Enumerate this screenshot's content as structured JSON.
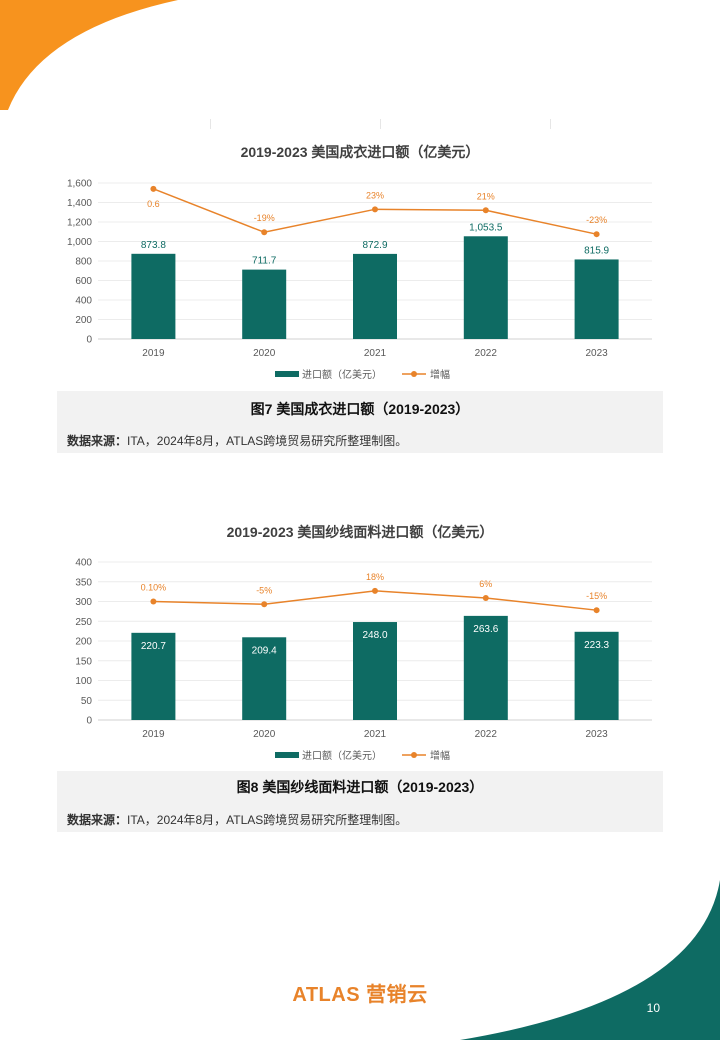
{
  "colors": {
    "bar": "#0E6B63",
    "line": "#E8832A",
    "accent_orange": "#F7931E",
    "accent_teal": "#0E6B63"
  },
  "figures": [
    {
      "caption": "图7 美国成衣进口额（2019-2023）",
      "source_label": "数据来源：",
      "source_text": "ITA，2024年8月，ATLAS跨境贸易研究所整理制图。"
    },
    {
      "caption": "图8 美国纱线面料进口额（2019-2023）",
      "source_label": "数据来源：",
      "source_text": "ITA，2024年8月，ATLAS跨境贸易研究所整理制图。"
    }
  ],
  "chart_data": [
    {
      "type": "bar",
      "title": "2019-2023 美国成衣进口额（亿美元）",
      "categories": [
        "2019",
        "2020",
        "2021",
        "2022",
        "2023"
      ],
      "series": [
        {
          "name": "进口额（亿美元）",
          "type": "bar",
          "values": [
            873.8,
            711.7,
            872.9,
            1053.5,
            815.9
          ],
          "labels": [
            "873.8",
            "711.7",
            "872.9",
            "1,053.5",
            "815.9"
          ]
        },
        {
          "name": "增幅",
          "type": "line",
          "labels": [
            "0.6",
            "-19%",
            "23%",
            "21%",
            "-23%"
          ],
          "marker_levels": [
            1540,
            1095,
            1330,
            1320,
            1075
          ]
        }
      ],
      "ylim": [
        0,
        1600
      ],
      "yticks": [
        0,
        200,
        400,
        600,
        800,
        1000,
        1200,
        1400,
        1600
      ],
      "ytick_labels": [
        "0",
        "200",
        "400",
        "600",
        "800",
        "1,000",
        "1,200",
        "1,400",
        "1,600"
      ],
      "grid": true,
      "legend": "bottom"
    },
    {
      "type": "bar",
      "title": "2019-2023 美国纱线面料进口额（亿美元）",
      "categories": [
        "2019",
        "2020",
        "2021",
        "2022",
        "2023"
      ],
      "series": [
        {
          "name": "进口额（亿美元）",
          "type": "bar",
          "values": [
            220.7,
            209.4,
            248.0,
            263.6,
            223.3
          ],
          "labels": [
            "220.7",
            "209.4",
            "248.0",
            "263.6",
            "223.3"
          ]
        },
        {
          "name": "增幅",
          "type": "line",
          "labels": [
            "0.10%",
            "-5%",
            "18%",
            "6%",
            "-15%"
          ],
          "marker_levels": [
            300,
            293,
            327,
            309,
            278
          ]
        }
      ],
      "ylim": [
        0,
        400
      ],
      "yticks": [
        0,
        50,
        100,
        150,
        200,
        250,
        300,
        350,
        400
      ],
      "ytick_labels": [
        "0",
        "50",
        "100",
        "150",
        "200",
        "250",
        "300",
        "350",
        "400"
      ],
      "grid": true,
      "legend": "bottom"
    }
  ],
  "footer": {
    "logo_text": "ATLAS 营销云",
    "page_number": "10"
  }
}
